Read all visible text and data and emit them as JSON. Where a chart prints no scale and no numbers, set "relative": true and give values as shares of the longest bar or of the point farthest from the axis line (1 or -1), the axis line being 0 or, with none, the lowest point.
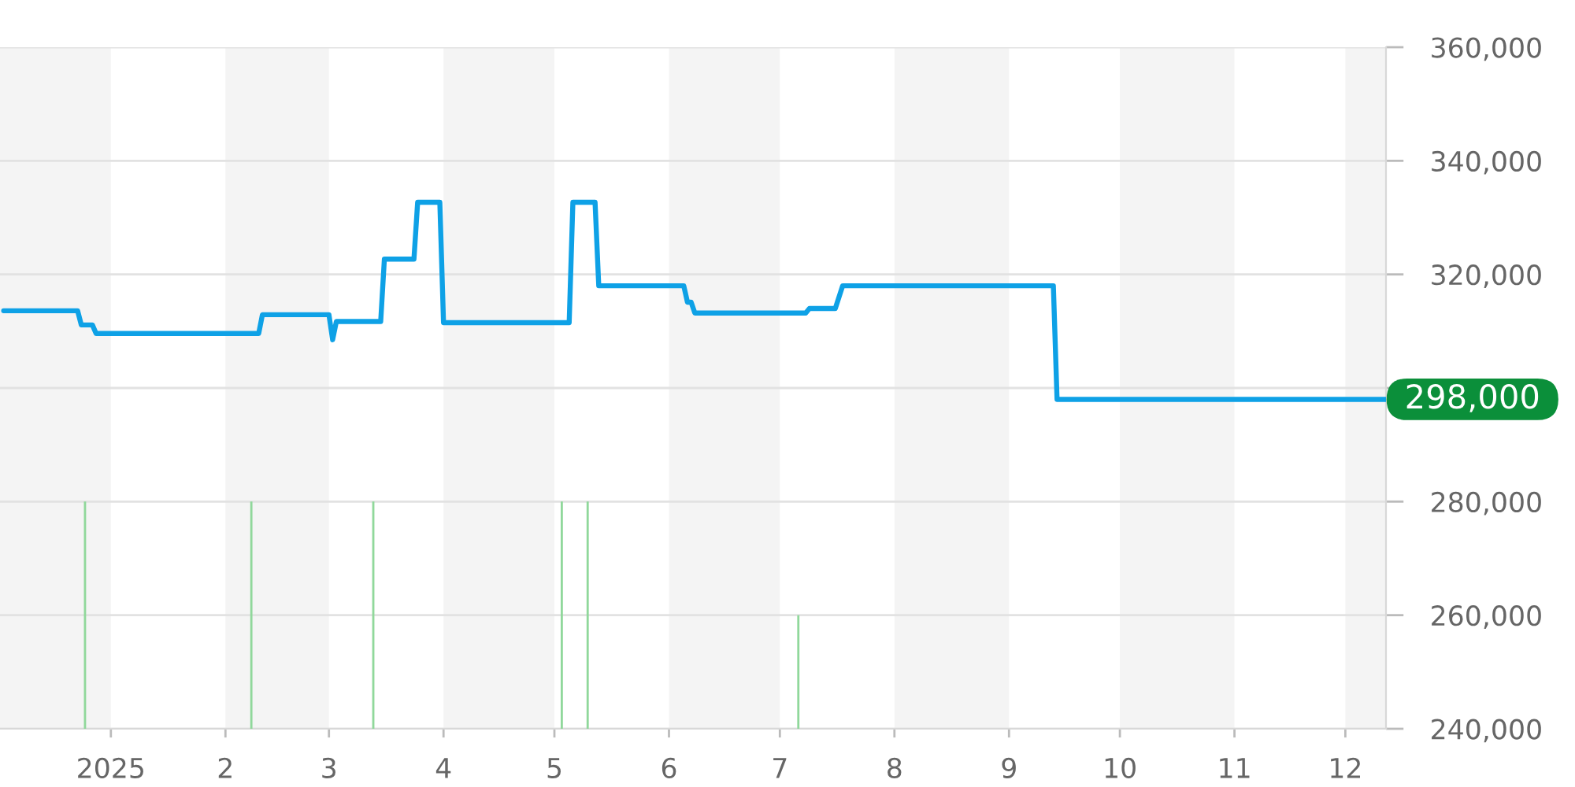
{
  "chart_data": [
    {
      "type": "line",
      "x": [
        "2024-12-03",
        "2024-12-23",
        "2024-12-24",
        "2024-12-27",
        "2024-12-28",
        "2025-02-10",
        "2025-02-11",
        "2025-03-01",
        "2025-03-02",
        "2025-03-03",
        "2025-03-15",
        "2025-03-16",
        "2025-03-24",
        "2025-03-25",
        "2025-03-31",
        "2025-04-01",
        "2025-05-05",
        "2025-05-06",
        "2025-05-12",
        "2025-05-13",
        "2025-06-05",
        "2025-06-06",
        "2025-06-07",
        "2025-06-08",
        "2025-07-08",
        "2025-07-09",
        "2025-07-16",
        "2025-07-18",
        "2025-09-13",
        "2025-09-14",
        "2025-12-12"
      ],
      "series": [
        {
          "color": "#0ea1e6",
          "values": [
            313600,
            313600,
            311100,
            311100,
            309600,
            309600,
            312900,
            312900,
            308500,
            311700,
            311700,
            322700,
            322700,
            332700,
            332700,
            311500,
            311500,
            332700,
            332700,
            318000,
            318000,
            315100,
            315100,
            313200,
            313200,
            314000,
            314000,
            318000,
            318000,
            298000,
            298000
          ]
        }
      ],
      "xlim": [
        "2024-12-02",
        "2025-12-12"
      ],
      "xticks": [
        {
          "value": "2025-01-01",
          "label": "2025"
        },
        {
          "value": "2025-02-01",
          "label": "2"
        },
        {
          "value": "2025-03-01",
          "label": "3"
        },
        {
          "value": "2025-04-01",
          "label": "4"
        },
        {
          "value": "2025-05-01",
          "label": "5"
        },
        {
          "value": "2025-06-01",
          "label": "6"
        },
        {
          "value": "2025-07-01",
          "label": "7"
        },
        {
          "value": "2025-08-01",
          "label": "8"
        },
        {
          "value": "2025-09-01",
          "label": "9"
        },
        {
          "value": "2025-10-01",
          "label": "10"
        },
        {
          "value": "2025-11-01",
          "label": "11"
        },
        {
          "value": "2025-12-01",
          "label": "12"
        }
      ],
      "ylim": [
        240000,
        360000
      ],
      "yticks": [
        {
          "value": 240000,
          "label": "240,000"
        },
        {
          "value": 260000,
          "label": "260,000"
        },
        {
          "value": 280000,
          "label": "280,000"
        },
        {
          "value": 300000,
          "label": null
        },
        {
          "value": 320000,
          "label": "320,000"
        },
        {
          "value": 340000,
          "label": "340,000"
        },
        {
          "value": 360000,
          "label": "360,000"
        }
      ],
      "grid": "y",
      "bands": [
        {
          "axis": "x",
          "from": "2024-12-02",
          "to": "2025-01-01",
          "color": "#f4f4f4"
        },
        {
          "axis": "x",
          "from": "2025-02-01",
          "to": "2025-03-01",
          "color": "#f4f4f4"
        },
        {
          "axis": "x",
          "from": "2025-04-01",
          "to": "2025-05-01",
          "color": "#f4f4f4"
        },
        {
          "axis": "x",
          "from": "2025-06-01",
          "to": "2025-07-01",
          "color": "#f4f4f4"
        },
        {
          "axis": "x",
          "from": "2025-08-01",
          "to": "2025-09-01",
          "color": "#f4f4f4"
        },
        {
          "axis": "x",
          "from": "2025-10-01",
          "to": "2025-11-01",
          "color": "#f4f4f4"
        },
        {
          "axis": "x",
          "from": "2025-12-01",
          "to": "2025-12-12",
          "color": "#f4f4f4"
        }
      ],
      "annotations": [
        {
          "text": "298,000",
          "x": "2025-12-12",
          "y": 298000
        }
      ]
    },
    {
      "type": "bar",
      "relative": true,
      "x": [
        "2024-12-25",
        "2025-02-08",
        "2025-03-13",
        "2025-05-03",
        "2025-05-10",
        "2025-07-06"
      ],
      "values": [
        1,
        1,
        1,
        1,
        1,
        0.5
      ],
      "color": "#90d89b",
      "xlim": [
        "2024-12-02",
        "2025-12-12"
      ]
    }
  ]
}
